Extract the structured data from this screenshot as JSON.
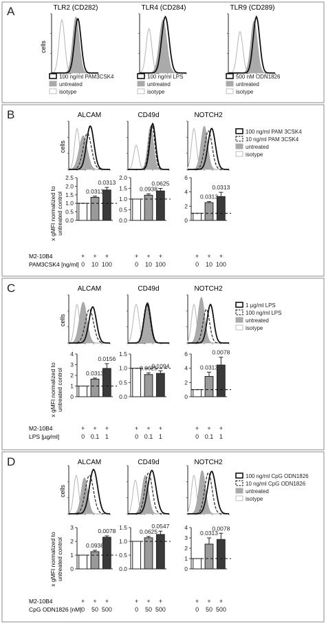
{
  "figure": {
    "panelA": {
      "letter": "A",
      "titles": [
        "TLR2 (CD282)",
        "TLR4 (CD284)",
        "TLR9 (CD289)"
      ],
      "ylabel": "cells",
      "legends": [
        [
          "100 ng/ml PAM3CSK4",
          "untreated",
          "isotype"
        ],
        [
          "100 ng/ml LPS",
          "untreated",
          "isotype"
        ],
        [
          "500 nM ODN1826",
          "untreated",
          "isotype"
        ]
      ]
    },
    "panelB": {
      "letter": "B",
      "titles": [
        "ALCAM",
        "CD49d",
        "NOTCH2"
      ],
      "ylabel": "cells",
      "legend": [
        "100 ng/ml PAM 3CSK4",
        "10 ng/ml PAM 3CSK4",
        "untreated",
        "isotype"
      ],
      "bar_ylabel_1": "x gMFI normalized to",
      "bar_ylabel_2": "untreated control",
      "row1_label": "M2-10B4",
      "row1_values": [
        "+",
        "+",
        "+"
      ],
      "row2_label": "PAM3CSK4 [ng/ml]",
      "row2_values": [
        "0",
        "10",
        "100"
      ]
    },
    "panelC": {
      "letter": "C",
      "titles": [
        "ALCAM",
        "CD49d",
        "NOTCH2"
      ],
      "ylabel": "cells",
      "legend": [
        "1 µg/ml LPS",
        "100 ng/ml LPS",
        "untreated",
        "isotype"
      ],
      "bar_ylabel_1": "x gMFI normalized to",
      "bar_ylabel_2": "untreated control",
      "row1_label": "M2-10B4",
      "row1_values": [
        "+",
        "+",
        "+"
      ],
      "row2_label": "LPS [µg/ml]",
      "row2_values": [
        "0",
        "0.1",
        "1"
      ]
    },
    "panelD": {
      "letter": "D",
      "titles": [
        "ALCAM",
        "CD49d",
        "NOTCH2"
      ],
      "ylabel": "cells",
      "legend": [
        "100 ng/ml CpG ODN1826",
        "10 ng/ml CpG ODN1826",
        "untreated",
        "isotype"
      ],
      "bar_ylabel_1": "x gMFI normalized to",
      "bar_ylabel_2": "untreated control",
      "row1_label": "M2-10B4",
      "row1_values": [
        "+",
        "+",
        "+"
      ],
      "row2_label": "CpG ODN1826 [nM]",
      "row2_values": [
        "0",
        "50",
        "500"
      ]
    }
  },
  "chart_data": [
    {
      "panel": "B",
      "title": "ALCAM",
      "type": "bar",
      "categories": [
        "0",
        "10",
        "100"
      ],
      "values": [
        1.0,
        1.35,
        1.78
      ],
      "errors": [
        0,
        0.07,
        0.15
      ],
      "pvalues": [
        "",
        "0.0313",
        "0.0313"
      ],
      "ylim": [
        0,
        2.5
      ],
      "yticks": [
        0,
        0.5,
        1.0,
        1.5,
        2.0,
        2.5
      ],
      "reference_line": 1.0
    },
    {
      "panel": "B",
      "title": "CD49d",
      "type": "bar",
      "categories": [
        "0",
        "10",
        "100"
      ],
      "values": [
        1.0,
        1.18,
        1.38
      ],
      "errors": [
        0,
        0.06,
        0.12
      ],
      "pvalues": [
        "",
        "0.0938",
        "0.0625"
      ],
      "ylim": [
        0,
        2.0
      ],
      "yticks": [
        0,
        0.5,
        1.0,
        1.5,
        2.0
      ],
      "reference_line": 1.0
    },
    {
      "panel": "B",
      "title": "NOTCH2",
      "type": "bar",
      "categories": [
        "0",
        "10",
        "100"
      ],
      "values": [
        1.0,
        2.5,
        3.35
      ],
      "errors": [
        0,
        0.15,
        0.6
      ],
      "pvalues": [
        "",
        "0.0313",
        "0.0313"
      ],
      "ylim": [
        0,
        6
      ],
      "yticks": [
        0,
        2,
        4,
        6
      ],
      "reference_line": 1.0
    },
    {
      "panel": "C",
      "title": "ALCAM",
      "type": "bar",
      "categories": [
        "0",
        "0.1",
        "1"
      ],
      "values": [
        1.0,
        1.65,
        2.65
      ],
      "errors": [
        0,
        0.1,
        0.45
      ],
      "pvalues": [
        "",
        "0.0313",
        "0.0156"
      ],
      "ylim": [
        0,
        4
      ],
      "yticks": [
        0,
        1,
        2,
        3,
        4
      ],
      "reference_line": 1.0
    },
    {
      "panel": "C",
      "title": "CD49d",
      "type": "bar",
      "categories": [
        "0",
        "0.1",
        "1"
      ],
      "values": [
        1.0,
        0.78,
        0.82
      ],
      "errors": [
        0,
        0.06,
        0.09
      ],
      "pvalues": [
        "",
        "0.0625",
        "0.1094"
      ],
      "ylim": [
        0,
        1.5
      ],
      "yticks": [
        0,
        0.5,
        1.0,
        1.5
      ],
      "reference_line": 1.0
    },
    {
      "panel": "C",
      "title": "NOTCH2",
      "type": "bar",
      "categories": [
        "0",
        "0.1",
        "1"
      ],
      "values": [
        1.0,
        2.85,
        4.45
      ],
      "errors": [
        0,
        0.6,
        1.1
      ],
      "pvalues": [
        "",
        "0.0313",
        "0.0078"
      ],
      "ylim": [
        0,
        6
      ],
      "yticks": [
        0,
        2,
        4,
        6
      ],
      "reference_line": 1.0
    },
    {
      "panel": "D",
      "title": "ALCAM",
      "type": "bar",
      "categories": [
        "0",
        "50",
        "500"
      ],
      "values": [
        1.0,
        1.25,
        2.3
      ],
      "errors": [
        0,
        0.1,
        0.1
      ],
      "pvalues": [
        "",
        "0.0938",
        "0.0078"
      ],
      "ylim": [
        0,
        3
      ],
      "yticks": [
        0,
        1,
        2,
        3
      ],
      "reference_line": 1.0
    },
    {
      "panel": "D",
      "title": "CD49d",
      "type": "bar",
      "categories": [
        "0",
        "50",
        "500"
      ],
      "values": [
        1.0,
        1.13,
        1.25
      ],
      "errors": [
        0,
        0.05,
        0.12
      ],
      "pvalues": [
        "",
        "0.0625",
        "0.0547"
      ],
      "ylim": [
        0,
        1.5
      ],
      "yticks": [
        0,
        0.5,
        1.0,
        1.5
      ],
      "reference_line": 1.0
    },
    {
      "panel": "D",
      "title": "NOTCH2",
      "type": "bar",
      "categories": [
        "0",
        "50",
        "500"
      ],
      "values": [
        1.0,
        2.4,
        2.85
      ],
      "errors": [
        0,
        0.6,
        0.6
      ],
      "pvalues": [
        "",
        "0.0313",
        "0.0078"
      ],
      "ylim": [
        0,
        4
      ],
      "yticks": [
        0,
        1,
        2,
        3,
        4
      ],
      "reference_line": 1.0
    }
  ]
}
